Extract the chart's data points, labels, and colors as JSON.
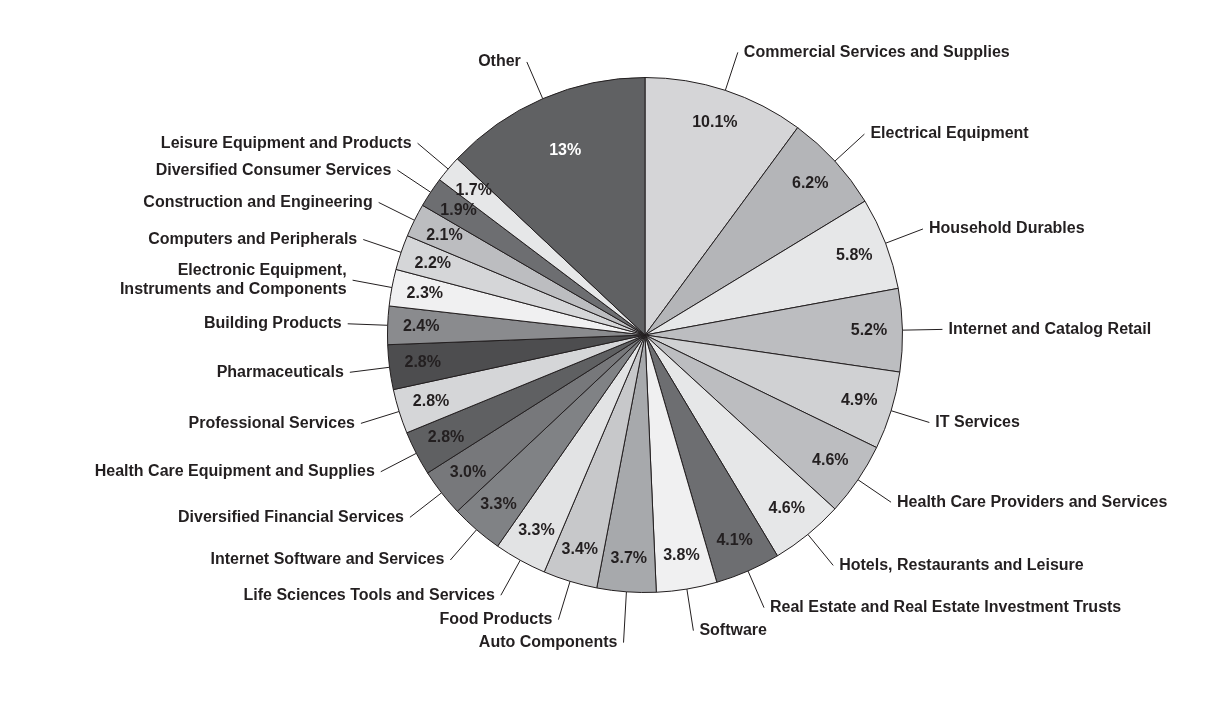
{
  "chart_data": {
    "type": "pie",
    "categories": [
      "Commercial Services and Supplies",
      "Electrical Equipment",
      "Household Durables",
      "Internet and Catalog Retail",
      "IT Services",
      "Health Care Providers and Services",
      "Hotels, Restaurants and Leisure",
      "Real Estate and Real Estate Investment Trusts",
      "Software",
      "Auto Components",
      "Food Products",
      "Life Sciences Tools and Services",
      "Internet Software and Services",
      "Diversified Financial Services",
      "Health Care Equipment and Supplies",
      "Professional Services",
      "Pharmaceuticals",
      "Building Products",
      "Electronic Equipment, Instruments and Components",
      "Computers and Peripherals",
      "Construction and Engineering",
      "Diversified Consumer Services",
      "Leisure Equipment and Products",
      "Other"
    ],
    "values": [
      10.1,
      6.2,
      5.8,
      5.2,
      4.9,
      4.6,
      4.6,
      4.1,
      3.8,
      3.7,
      3.4,
      3.3,
      3.3,
      3.0,
      2.8,
      2.8,
      2.8,
      2.4,
      2.3,
      2.2,
      2.1,
      1.9,
      1.7,
      13
    ],
    "value_labels": [
      "10.1%",
      "6.2%",
      "5.8%",
      "5.2%",
      "4.9%",
      "4.6%",
      "4.6%",
      "4.1%",
      "3.8%",
      "3.7%",
      "3.4%",
      "3.3%",
      "3.3%",
      "3.0%",
      "2.8%",
      "2.8%",
      "2.8%",
      "2.4%",
      "2.3%",
      "2.2%",
      "2.1%",
      "1.9%",
      "1.7%",
      "13%"
    ],
    "colors": [
      "#d5d5d7",
      "#b4b5b8",
      "#e6e7e8",
      "#bcbdc0",
      "#d0d1d3",
      "#bcbdc0",
      "#e6e7e8",
      "#6d6e71",
      "#f0f0f1",
      "#a7a9ac",
      "#c7c8ca",
      "#e2e3e4",
      "#808285",
      "#77787b",
      "#5f6062",
      "#d5d6d8",
      "#4d4d4f",
      "#8a8b8e",
      "#f0f0f1",
      "#d5d6d8",
      "#bcbdc0",
      "#6d6e71",
      "#e6e7e8",
      "#606163"
    ]
  }
}
